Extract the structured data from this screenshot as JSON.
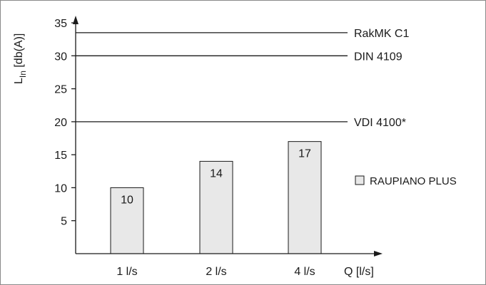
{
  "chart_data": {
    "type": "bar",
    "categories": [
      "1 l/s",
      "2 l/s",
      "4 l/s"
    ],
    "series": [
      {
        "name": "RAUPIANO PLUS",
        "values": [
          10,
          14,
          17
        ]
      }
    ],
    "data_labels": [
      "10",
      "14",
      "17"
    ],
    "ylabel": {
      "main": "L",
      "sub": "In",
      "unit": " [db(A)]"
    },
    "xlabel": "Q [l/s]",
    "ylim": [
      0,
      37
    ],
    "yticks": [
      5,
      10,
      15,
      20,
      25,
      30,
      35
    ],
    "grid": false,
    "legend_position": "right",
    "reference_lines": [
      {
        "label": "RakMK C1",
        "value": 33.5
      },
      {
        "label": "DIN 4109",
        "value": 30
      },
      {
        "label": "VDI 4100*",
        "value": 20
      }
    ],
    "colors": {
      "bar_fill": "#e8e8e8",
      "bar_stroke": "#1a1a1a",
      "axis": "#1a1a1a",
      "frame": "#8a8a8a"
    }
  }
}
